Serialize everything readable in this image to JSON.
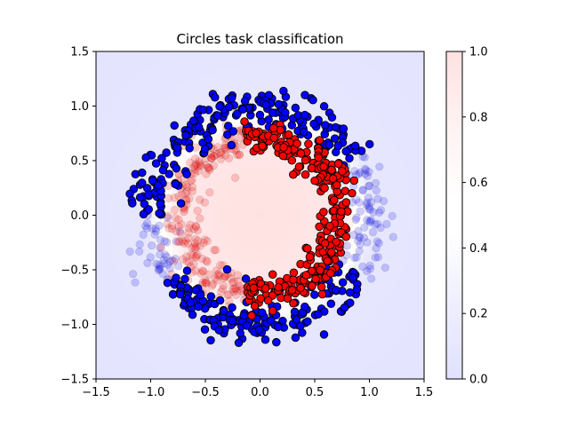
{
  "chart_data": {
    "type": "scatter",
    "title": "Circles task classification",
    "xlabel": "",
    "ylabel": "",
    "xlim": [
      -1.5,
      1.5
    ],
    "ylim": [
      -1.5,
      1.5
    ],
    "xticks": [
      "−1.5",
      "−1.0",
      "−0.5",
      "0.0",
      "0.5",
      "1.0",
      "1.5"
    ],
    "yticks": [
      "−1.5",
      "−1.0",
      "−0.5",
      "0.0",
      "0.5",
      "1.0",
      "1.5"
    ],
    "colorbar": {
      "range": [
        0.0,
        1.0
      ],
      "ticks": [
        "0.0",
        "0.2",
        "0.4",
        "0.6",
        "0.8",
        "1.0"
      ],
      "colormap": "bwr",
      "low_color": "#0000ff",
      "mid_color": "#ffffff",
      "high_color": "#ff0000"
    },
    "background": {
      "description_type": "decision-probability-field",
      "inner_radius": 0.75,
      "outer_radius": 1.05,
      "center_probability": 0.55,
      "outside_probability": 0.1
    },
    "series": [
      {
        "class": 0,
        "color": "#0000ff",
        "ring_radius_mean": 1.0,
        "ring_radius_sd": 0.1,
        "highlighted_arc_deg": [
          30,
          180
        ],
        "highlighted_arc2_deg": [
          215,
          330
        ]
      },
      {
        "class": 1,
        "color": "#ff0000",
        "ring_radius_mean": 0.72,
        "ring_radius_sd": 0.08,
        "highlighted_arc_deg": [
          -80,
          100
        ],
        "highlighted_arc2_deg": [
          260,
          290
        ]
      }
    ],
    "points_per_class": 500,
    "legend": "none",
    "grid": false
  }
}
